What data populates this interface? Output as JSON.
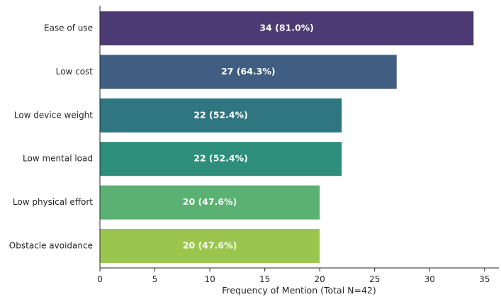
{
  "chart_data": {
    "type": "bar",
    "orientation": "horizontal",
    "categories": [
      "Ease of use",
      "Low cost",
      "Low device weight",
      "Low mental load",
      "Low physical effort",
      "Obstacle avoidance"
    ],
    "values": [
      34,
      27,
      22,
      22,
      20,
      20
    ],
    "data_labels": [
      "34 (81.0%)",
      "27 (64.3%)",
      "22 (52.4%)",
      "22 (52.4%)",
      "20 (47.6%)",
      "20 (47.6%)"
    ],
    "colors": [
      "#4b3a73",
      "#3f5e82",
      "#2f7680",
      "#2e8e7c",
      "#5bb172",
      "#9bc64e"
    ],
    "title": "",
    "xlabel": "Frequency of Mention (Total N=42)",
    "ylabel": "",
    "xlim": [
      0,
      35
    ],
    "xticks": [
      0,
      5,
      10,
      15,
      20,
      25,
      30,
      35
    ],
    "grid": false,
    "legend": "none"
  }
}
